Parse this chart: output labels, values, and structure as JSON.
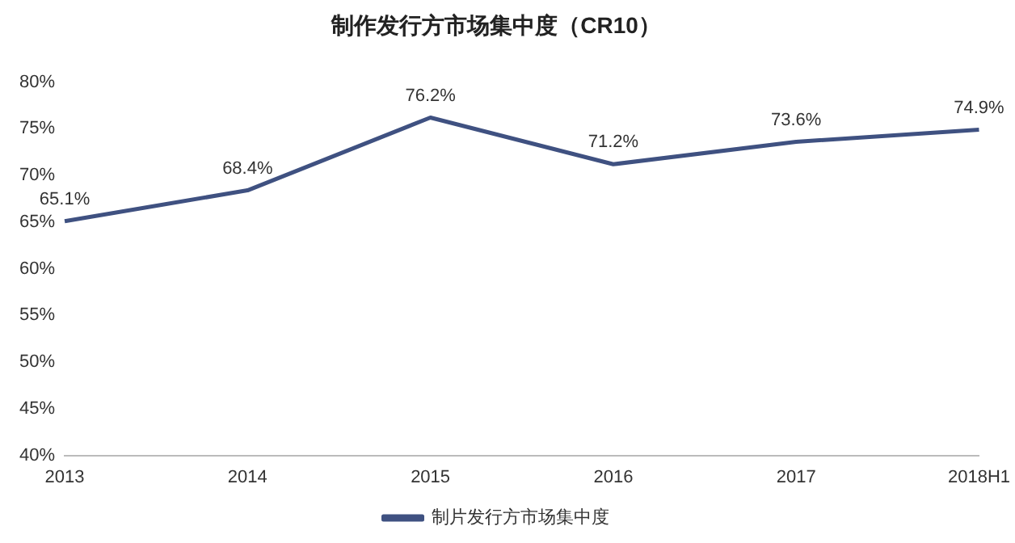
{
  "chart_data": {
    "type": "line",
    "title": "制作发行方市场集中度（CR10）",
    "categories": [
      "2013",
      "2014",
      "2015",
      "2016",
      "2017",
      "2018H1"
    ],
    "series": [
      {
        "name": "制片发行方市场集中度",
        "color": "#3f5181",
        "values": [
          65.1,
          68.4,
          76.2,
          71.2,
          73.6,
          74.9
        ],
        "value_labels": [
          "65.1%",
          "68.4%",
          "76.2%",
          "71.2%",
          "73.6%",
          "74.9%"
        ]
      }
    ],
    "ylim": [
      40,
      80
    ],
    "yticks": [
      {
        "value": 40,
        "label": "40%"
      },
      {
        "value": 45,
        "label": "45%"
      },
      {
        "value": 50,
        "label": "50%"
      },
      {
        "value": 55,
        "label": "55%"
      },
      {
        "value": 60,
        "label": "60%"
      },
      {
        "value": 65,
        "label": "65%"
      },
      {
        "value": 70,
        "label": "70%"
      },
      {
        "value": 75,
        "label": "75%"
      },
      {
        "value": 80,
        "label": "80%"
      }
    ],
    "grid": false,
    "legend": "bottom",
    "marker": "none",
    "line_style": "solid"
  }
}
